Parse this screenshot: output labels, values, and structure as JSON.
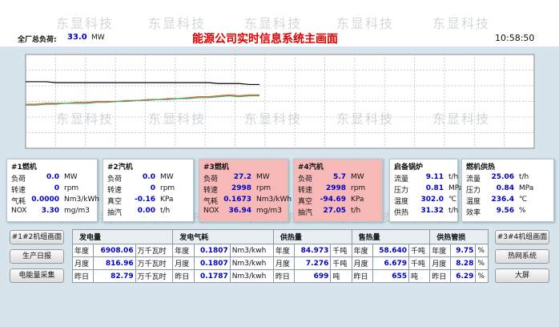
{
  "watermark": "东显科技",
  "header": {
    "load_label": "全厂总负荷:",
    "load_value": "33.0",
    "load_unit": "MW",
    "title": "能源公司实时信息系统主画面",
    "time": "10:58:50"
  },
  "trend": {
    "type": "line",
    "x": [
      0,
      2,
      4,
      6,
      8,
      10,
      12,
      14,
      16,
      18,
      20,
      22,
      24,
      26,
      28,
      30,
      32,
      34,
      36,
      38,
      40,
      42,
      44,
      46
    ],
    "xlim": [
      0,
      100
    ],
    "ylim": [
      0,
      100
    ],
    "series": [
      {
        "color": "#000000",
        "values": [
          71,
          71,
          71,
          70,
          70,
          70,
          70,
          70,
          70,
          70,
          70,
          70,
          70,
          70,
          70,
          70,
          70,
          70,
          70,
          69,
          69,
          69,
          68,
          68
        ]
      },
      {
        "color": "#e8603a",
        "values": [
          47,
          47,
          48,
          48,
          48,
          49,
          49,
          50,
          50,
          50,
          51,
          51,
          52,
          52,
          53,
          53,
          54,
          55,
          55,
          56,
          57,
          56,
          57,
          57
        ]
      },
      {
        "color": "#3aa860",
        "values": [
          46,
          46,
          47,
          47,
          48,
          48,
          48,
          49,
          49,
          50,
          50,
          51,
          51,
          52,
          52,
          53,
          53,
          54,
          54,
          55,
          56,
          55,
          56,
          56
        ]
      }
    ]
  },
  "panels": [
    {
      "title": "#1燃机",
      "color": "#ffffff",
      "rows": [
        [
          "负荷",
          "0.0",
          "MW"
        ],
        [
          "转速",
          "0",
          "rpm"
        ],
        [
          "气耗",
          "0.0000",
          "Nm3/kWh"
        ],
        [
          "NOX",
          "3.30",
          "mg/m3"
        ]
      ]
    },
    {
      "title": "#2汽机",
      "color": "#ffffff",
      "rows": [
        [
          "负荷",
          "0.0",
          "MW"
        ],
        [
          "转速",
          "0",
          "rpm"
        ],
        [
          "真空",
          "-0.16",
          "KPa"
        ],
        [
          "抽汽",
          "0.00",
          "t/h"
        ]
      ]
    },
    {
      "title": "#3燃机",
      "color": "#f7b8b8",
      "rows": [
        [
          "负荷",
          "27.2",
          "MW"
        ],
        [
          "转速",
          "2998",
          "rpm"
        ],
        [
          "气耗",
          "0.1673",
          "Nm3/kWh"
        ],
        [
          "NOX",
          "36.94",
          "mg/m3"
        ]
      ]
    },
    {
      "title": "#4汽机",
      "color": "#f7b8b8",
      "rows": [
        [
          "负荷",
          "5.7",
          "MW"
        ],
        [
          "转速",
          "2998",
          "rpm"
        ],
        [
          "真空",
          "-94.69",
          "KPa"
        ],
        [
          "抽汽",
          "27.05",
          "t/h"
        ]
      ]
    },
    {
      "title": "启备锅炉",
      "color": "#ffffff",
      "rows": [
        [
          "流量",
          "9.11",
          "t/h"
        ],
        [
          "压力",
          "0.81",
          "MPa"
        ],
        [
          "温度",
          "302.0",
          "℃"
        ],
        [
          "供热",
          "31.32",
          "t/h"
        ]
      ]
    },
    {
      "title": "燃机供热",
      "color": "#ffffff",
      "rows": [
        [
          "流量",
          "25.06",
          "t/h"
        ],
        [
          "压力",
          "0.84",
          "MPa"
        ],
        [
          "温度",
          "236.4",
          "℃"
        ],
        [
          "效率",
          "9.56",
          "%"
        ]
      ]
    }
  ],
  "buttons_left": [
    "#1#2机组画面",
    "生产日报",
    "电能量采集"
  ],
  "buttons_right": [
    "#3#4机组画面",
    "热网系统",
    "大屏"
  ],
  "table": {
    "headers": [
      "发电量",
      "发电气耗",
      "供热量",
      "售热量",
      "供热管损"
    ],
    "rows": [
      [
        "年度",
        "6908.06",
        "万千瓦时",
        "年度",
        "0.1807",
        "Nm3/kwh",
        "年度",
        "84.973",
        "千吨",
        "年度",
        "58.640",
        "千吨",
        "年度",
        "9.75",
        "%"
      ],
      [
        "月度",
        "816.96",
        "万千瓦时",
        "月度",
        "0.1807",
        "Nm3/kwh",
        "月度",
        "7.276",
        "千吨",
        "月度",
        "6.679",
        "千吨",
        "月度",
        "8.28",
        "%"
      ],
      [
        "昨日",
        "82.79",
        "万千瓦时",
        "昨日",
        "0.1787",
        "Nm3/kwh",
        "昨日",
        "699",
        "吨",
        "昨日",
        "655",
        "吨",
        "昨日",
        "6.29",
        "%"
      ]
    ]
  }
}
